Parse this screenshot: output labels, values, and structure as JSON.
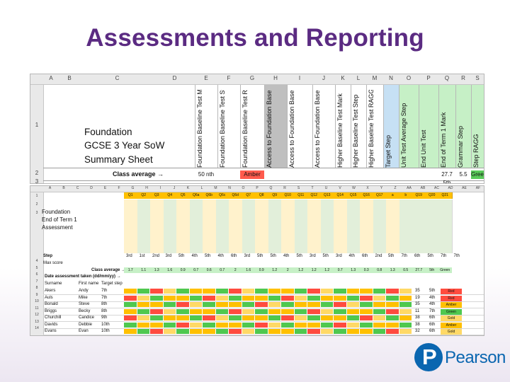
{
  "slide": {
    "title": "Assessments and Reporting"
  },
  "sheet1": {
    "col_letters": [
      "A",
      "B",
      "C",
      "D",
      "E",
      "F",
      "G",
      "H",
      "I",
      "J",
      "K",
      "L",
      "M",
      "N",
      "O",
      "P",
      "Q",
      "R",
      "S"
    ],
    "row_numbers": [
      "1",
      "2",
      "3"
    ],
    "title_lines": [
      "Foundation",
      "GCSE 3 Year SoW",
      "Summary Sheet"
    ],
    "headers": [
      "Foundation Baseline Test Mark",
      "Foundation Baseline Test Step",
      "Foundation Baseline Test RAGG",
      "Access to Foundation Baseline Test Mark",
      "Access to Foundation Baseline Test Step",
      "Access to Foundation Baseline Test RAGG",
      "Higher Baseline Test Mark",
      "Higher Baseline Test Step",
      "Higher Baseline Test RAGG",
      "Target Step",
      "Unit Test Average Step",
      "End Unit Test",
      "End of Term 1 Mark",
      "Grammar Step",
      "Step RAGG"
    ],
    "header_colors": [
      "#ffffff",
      "#ffffff",
      "#ffffff",
      "#bfbfbf",
      "#ffffff",
      "#ffffff",
      "#ffffff",
      "#ffffff",
      "#ffffff",
      "#c6e0f4",
      "#c6f0c6",
      "#c6f0c6",
      "#c6f0c6",
      "#c6f0c6",
      "#c6f0c6"
    ],
    "class_average_label": "Class average →",
    "class_average_values": [
      "50 nth",
      "",
      "Amber",
      "",
      "",
      "",
      "",
      "",
      "",
      "",
      "",
      "",
      "27.7 5th",
      "5.5",
      "Green"
    ]
  },
  "sheet2": {
    "col_letters": [
      "A",
      "B",
      "C",
      "D",
      "E",
      "F",
      "G",
      "H",
      "I",
      "J",
      "K",
      "L",
      "M",
      "N",
      "O",
      "P",
      "Q",
      "R",
      "S",
      "T",
      "U",
      "V",
      "W",
      "X",
      "Y",
      "Z",
      "AA",
      "AB",
      "AC",
      "AD",
      "AE",
      "AF"
    ],
    "q_row": [
      "Q1",
      "Q2",
      "Q3",
      "Q4",
      "Q5",
      "Q6a",
      "Q6b",
      "Q6c",
      "Q6d",
      "Q7",
      "Q8",
      "Q9",
      "Q10",
      "Q11",
      "Q12",
      "Q13",
      "Q14",
      "Q15",
      "Q16",
      "Q17",
      "a",
      "b",
      "Q19",
      "Q20",
      "Q21"
    ],
    "title_lines": [
      "Foundation",
      "End of Term 1",
      "Assessment"
    ],
    "step_row_label": "Step",
    "step_values": [
      "3rd",
      "1st",
      "2nd",
      "3rd",
      "5th",
      "4th",
      "5th",
      "4th",
      "6th",
      "3rd",
      "5th",
      "5th",
      "4th",
      "5th",
      "3rd",
      "5th",
      "3rd",
      "4th",
      "6th",
      "2nd",
      "5th",
      "7th",
      "6th",
      "5th",
      "7th",
      "7th"
    ],
    "max_row_label": "Max score",
    "class_avg_label": "Class average →",
    "class_avg_values": [
      "1.7",
      "1.1",
      "1.3",
      "1.6",
      "0.9",
      "0.7",
      "0.6",
      "0.7",
      "2",
      "1.6",
      "0.9",
      "1.2",
      "2",
      "1.2",
      "1.2",
      "1.2",
      "0.7",
      "1.3",
      "0.3",
      "0.8",
      "1.3",
      "0.5",
      "27.7",
      "5th",
      "Green"
    ],
    "date_label": "Date assessment taken (dd/mm/yy) →",
    "columns": [
      "Surname",
      "First name",
      "Target step"
    ],
    "students": [
      {
        "surname": "Akers",
        "first": "Andy",
        "target": "7th",
        "total": "35",
        "step": "5th",
        "rag": "Red"
      },
      {
        "surname": "Auls",
        "first": "Mike",
        "target": "7th",
        "total": "19",
        "step": "4th",
        "rag": "Red"
      },
      {
        "surname": "Bonald",
        "first": "Steve",
        "target": "8th",
        "total": "35",
        "step": "4th",
        "rag": "Amber"
      },
      {
        "surname": "Briggs",
        "first": "Becky",
        "target": "8th",
        "total": "11",
        "step": "7th",
        "rag": "Green"
      },
      {
        "surname": "Churchill",
        "first": "Candice",
        "target": "9th",
        "total": "38",
        "step": "6th",
        "rag": "Gold"
      },
      {
        "surname": "Davids",
        "first": "Debbie",
        "target": "10th",
        "total": "38",
        "step": "6th",
        "rag": "Amber"
      },
      {
        "surname": "Evans",
        "first": "Evan",
        "target": "10th",
        "total": "32",
        "step": "6th",
        "rag": "Gold"
      }
    ],
    "rag_colors": {
      "Red": "#ff4b3e",
      "Amber": "#ffc000",
      "Green": "#4fc84f",
      "Gold": "#ffd966"
    },
    "row_numbers": [
      "1",
      "2",
      "3",
      "4",
      "5",
      "6",
      "7",
      "8",
      "9",
      "10",
      "11",
      "12",
      "13",
      "14"
    ]
  },
  "brand": {
    "name": "Pearson",
    "color": "#0a66b0"
  }
}
